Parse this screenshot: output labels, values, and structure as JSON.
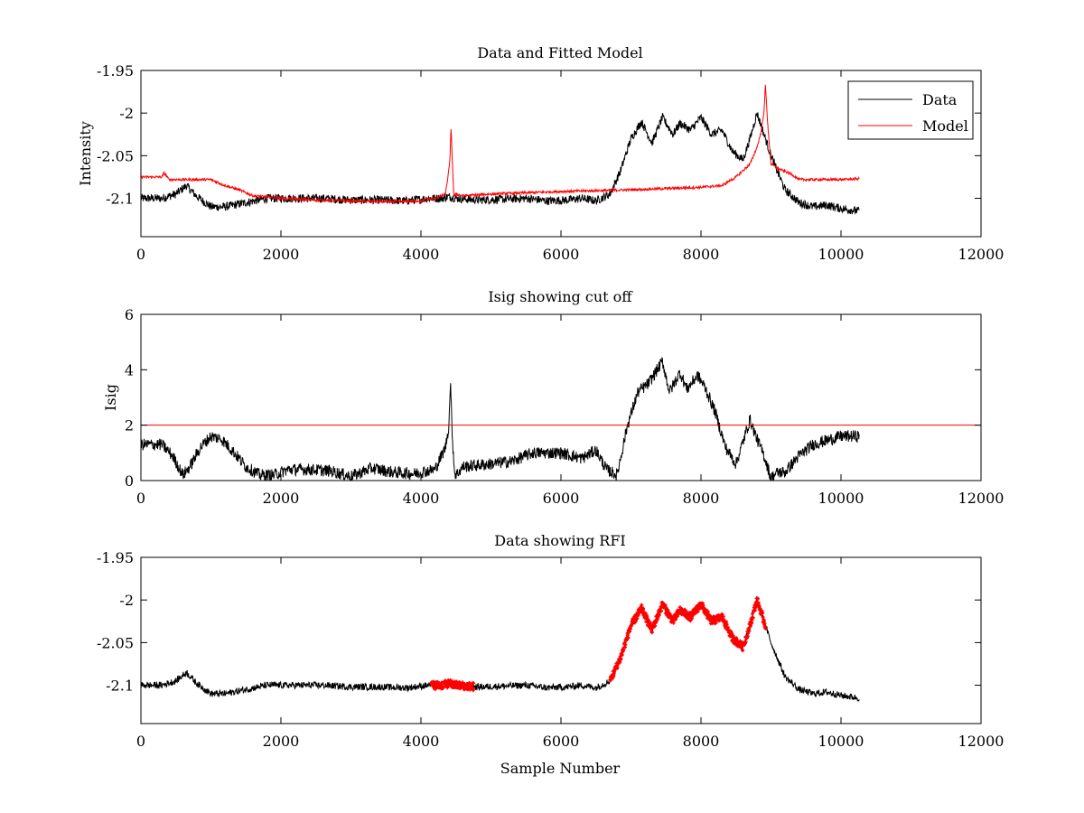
{
  "figure": {
    "background": "#ffffff",
    "data_color": "#000000",
    "model_color": "#ff0000",
    "rfi_color": "#ff0000",
    "cutoff_color": "#ff0000"
  },
  "chart_data": [
    {
      "id": "top",
      "type": "line",
      "title": "Data and Fitted Model",
      "xlabel": "",
      "ylabel": "Intensity",
      "xlim": [
        0,
        12000
      ],
      "ylim": [
        -2.145,
        -1.95
      ],
      "yreverse": true,
      "xticks": [
        0,
        2000,
        4000,
        6000,
        8000,
        10000,
        12000
      ],
      "xtick_labels": [
        "0",
        "2000",
        "4000",
        "6000",
        "8000",
        "10000",
        "12000"
      ],
      "yticks": [
        -1.95,
        -2.0,
        -2.05,
        -2.1
      ],
      "ytick_labels": [
        "-1.95",
        "-2",
        "-2.05",
        "-2.1"
      ],
      "legend": {
        "position": "top-right",
        "entries": [
          "Data",
          "Model"
        ]
      },
      "series": [
        {
          "name": "Data",
          "color": "#000000",
          "x": [
            0,
            300,
            500,
            650,
            800,
            1000,
            1200,
            1500,
            1800,
            2200,
            2600,
            3000,
            3400,
            3800,
            4100,
            4300,
            4400,
            4500,
            4800,
            5200,
            5500,
            5800,
            6100,
            6300,
            6500,
            6700,
            6850,
            7000,
            7150,
            7300,
            7450,
            7600,
            7700,
            7850,
            8000,
            8150,
            8300,
            8450,
            8600,
            8700,
            8800,
            8900,
            9000,
            9200,
            9400,
            9600,
            9800,
            10000,
            10260
          ],
          "y": [
            -2.1,
            -2.1,
            -2.095,
            -2.085,
            -2.098,
            -2.11,
            -2.11,
            -2.105,
            -2.1,
            -2.1,
            -2.1,
            -2.102,
            -2.102,
            -2.103,
            -2.1,
            -2.1,
            -2.098,
            -2.1,
            -2.102,
            -2.101,
            -2.1,
            -2.103,
            -2.102,
            -2.1,
            -2.103,
            -2.095,
            -2.068,
            -2.03,
            -2.01,
            -2.035,
            -2.005,
            -2.025,
            -2.012,
            -2.02,
            -2.005,
            -2.025,
            -2.02,
            -2.045,
            -2.055,
            -2.03,
            -2.0,
            -2.025,
            -2.05,
            -2.09,
            -2.105,
            -2.11,
            -2.108,
            -2.112,
            -2.115
          ],
          "noise": 0.005
        },
        {
          "name": "Model",
          "color": "#ff0000",
          "x": [
            0,
            300,
            330,
            400,
            1000,
            1200,
            1400,
            1600,
            2000,
            2500,
            3000,
            3500,
            4000,
            4200,
            4350,
            4410,
            4430,
            4450,
            4470,
            4500,
            4600,
            5000,
            6000,
            7000,
            8000,
            8300,
            8500,
            8700,
            8800,
            8850,
            8900,
            8920,
            8950,
            9000,
            9100,
            9300,
            9400,
            10000,
            10260
          ],
          "y": [
            -2.075,
            -2.075,
            -2.07,
            -2.078,
            -2.078,
            -2.085,
            -2.09,
            -2.097,
            -2.1,
            -2.102,
            -2.103,
            -2.104,
            -2.103,
            -2.1,
            -2.095,
            -2.06,
            -2.018,
            -2.06,
            -2.098,
            -2.095,
            -2.097,
            -2.095,
            -2.092,
            -2.09,
            -2.087,
            -2.085,
            -2.075,
            -2.06,
            -2.04,
            -2.025,
            -2.0,
            -1.965,
            -2.01,
            -2.06,
            -2.065,
            -2.072,
            -2.078,
            -2.078,
            -2.077
          ],
          "noise": 0.0015
        }
      ]
    },
    {
      "id": "middle",
      "type": "line",
      "title": "Isig showing cut off",
      "xlabel": "",
      "ylabel": "Isig",
      "xlim": [
        0,
        12000
      ],
      "ylim": [
        0,
        6
      ],
      "xticks": [
        0,
        2000,
        4000,
        6000,
        8000,
        10000,
        12000
      ],
      "xtick_labels": [
        "0",
        "2000",
        "4000",
        "6000",
        "8000",
        "10000",
        "12000"
      ],
      "yticks": [
        0,
        2,
        4,
        6
      ],
      "ytick_labels": [
        "0",
        "2",
        "4",
        "6"
      ],
      "cutoff": 2,
      "series": [
        {
          "name": "Isig",
          "color": "#000000",
          "x": [
            0,
            300,
            450,
            600,
            700,
            850,
            1000,
            1150,
            1300,
            1500,
            1700,
            1900,
            2100,
            2400,
            2700,
            3000,
            3300,
            3600,
            3900,
            4200,
            4350,
            4400,
            4420,
            4450,
            4480,
            4500,
            4600,
            5000,
            5300,
            5600,
            6000,
            6300,
            6500,
            6650,
            6800,
            6950,
            7100,
            7250,
            7450,
            7550,
            7700,
            7800,
            7950,
            8050,
            8200,
            8350,
            8500,
            8600,
            8700,
            8800,
            8900,
            9000,
            9100,
            9200,
            9400,
            9600,
            9800,
            10000,
            10260
          ],
          "y": [
            1.3,
            1.3,
            0.9,
            0.2,
            0.5,
            1.2,
            1.6,
            1.5,
            1.1,
            0.5,
            0.2,
            0.2,
            0.4,
            0.4,
            0.35,
            0.15,
            0.45,
            0.3,
            0.25,
            0.4,
            1.2,
            2.0,
            3.6,
            1.5,
            0.3,
            0.2,
            0.5,
            0.6,
            0.7,
            1.0,
            1.0,
            0.8,
            1.1,
            0.4,
            0.2,
            2.0,
            3.2,
            3.5,
            4.3,
            3.2,
            3.9,
            3.3,
            3.8,
            3.4,
            2.5,
            1.2,
            0.6,
            1.4,
            2.2,
            1.5,
            0.9,
            0.1,
            0.3,
            0.3,
            0.9,
            1.3,
            1.45,
            1.6,
            1.6
          ],
          "noise": 0.22
        }
      ]
    },
    {
      "id": "bottom",
      "type": "line",
      "title": "Data showing RFI",
      "xlabel": "Sample Number",
      "ylabel": "",
      "xlim": [
        0,
        12000
      ],
      "ylim": [
        -2.145,
        -1.95
      ],
      "yreverse": true,
      "xticks": [
        0,
        2000,
        4000,
        6000,
        8000,
        10000,
        12000
      ],
      "xtick_labels": [
        "0",
        "2000",
        "4000",
        "6000",
        "8000",
        "10000",
        "12000"
      ],
      "yticks": [
        -1.95,
        -2.0,
        -2.05,
        -2.1
      ],
      "ytick_labels": [
        "-1.95",
        "-2",
        "-2.05",
        "-2.1"
      ],
      "series": [
        {
          "name": "Data",
          "color": "#000000",
          "x": [
            0,
            300,
            500,
            650,
            800,
            1000,
            1200,
            1500,
            1800,
            2200,
            2600,
            3000,
            3400,
            3800,
            4100,
            4300,
            4400,
            4500,
            4800,
            5200,
            5500,
            5800,
            6100,
            6300,
            6500,
            6700,
            6850,
            7000,
            7150,
            7300,
            7450,
            7600,
            7700,
            7850,
            8000,
            8150,
            8300,
            8450,
            8600,
            8700,
            8800,
            8900,
            9000,
            9200,
            9400,
            9600,
            9800,
            10000,
            10260
          ],
          "y": [
            -2.1,
            -2.1,
            -2.095,
            -2.085,
            -2.098,
            -2.11,
            -2.11,
            -2.105,
            -2.1,
            -2.1,
            -2.1,
            -2.102,
            -2.102,
            -2.103,
            -2.1,
            -2.1,
            -2.098,
            -2.1,
            -2.102,
            -2.101,
            -2.1,
            -2.103,
            -2.102,
            -2.1,
            -2.103,
            -2.095,
            -2.068,
            -2.03,
            -2.01,
            -2.035,
            -2.005,
            -2.025,
            -2.012,
            -2.02,
            -2.005,
            -2.025,
            -2.02,
            -2.045,
            -2.055,
            -2.03,
            -2.0,
            -2.025,
            -2.05,
            -2.09,
            -2.105,
            -2.11,
            -2.108,
            -2.112,
            -2.115
          ],
          "noise": 0.004
        }
      ],
      "rfi_ranges": [
        [
          4150,
          4750
        ],
        [
          6700,
          8920
        ]
      ]
    }
  ]
}
